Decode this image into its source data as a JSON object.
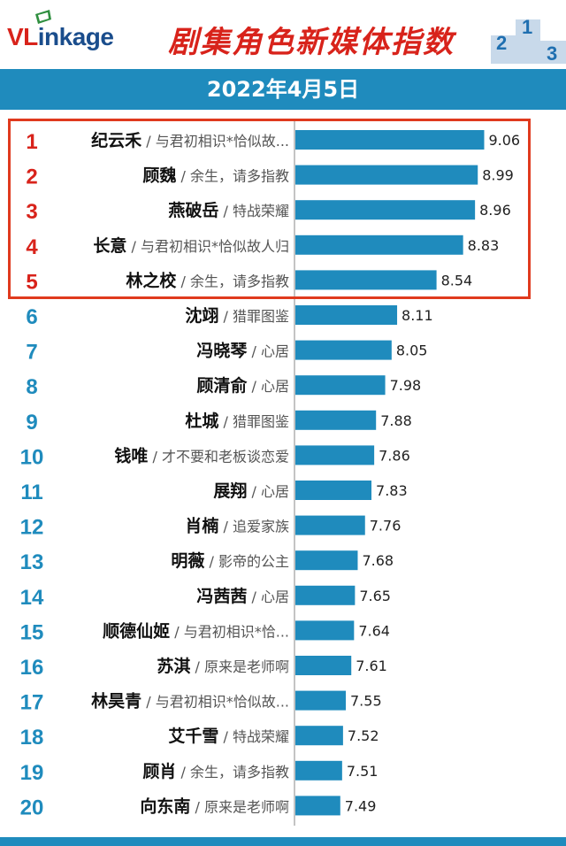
{
  "header": {
    "logo_vl": "VL",
    "logo_rest": "inkage",
    "title": "剧集角色新媒体指数",
    "podium_digits": [
      "2",
      "1",
      "3"
    ]
  },
  "date": "2022年4月5日",
  "colors": {
    "accent": "#1f8bbd",
    "rank_top": "#d8231b",
    "rank_other": "#1f8bbd",
    "highlight_box": "#e03a1e"
  },
  "chart_data": {
    "type": "bar",
    "orientation": "horizontal",
    "highlighted_ranks": [
      1,
      2,
      3,
      4,
      5
    ],
    "rows": [
      {
        "rank": "1",
        "name": "纪云禾",
        "drama": " / 与君初相识*恰似故...",
        "value": 9.06
      },
      {
        "rank": "2",
        "name": "顾魏",
        "drama": " / 余生，请多指教",
        "value": 8.99
      },
      {
        "rank": "3",
        "name": "燕破岳",
        "drama": " / 特战荣耀",
        "value": 8.96
      },
      {
        "rank": "4",
        "name": "长意",
        "drama": " / 与君初相识*恰似故人归",
        "value": 8.83
      },
      {
        "rank": "5",
        "name": "林之校",
        "drama": " / 余生，请多指教",
        "value": 8.54
      },
      {
        "rank": "6",
        "name": "沈翊",
        "drama": " / 猎罪图鉴",
        "value": 8.11
      },
      {
        "rank": "7",
        "name": "冯晓琴",
        "drama": " / 心居",
        "value": 8.05
      },
      {
        "rank": "8",
        "name": "顾清俞",
        "drama": " / 心居",
        "value": 7.98
      },
      {
        "rank": "9",
        "name": "杜城",
        "drama": " / 猎罪图鉴",
        "value": 7.88
      },
      {
        "rank": "10",
        "name": "钱唯",
        "drama": " / 才不要和老板谈恋爱",
        "value": 7.86
      },
      {
        "rank": "11",
        "name": "展翔",
        "drama": " / 心居",
        "value": 7.83
      },
      {
        "rank": "12",
        "name": "肖楠",
        "drama": " / 追爱家族",
        "value": 7.76
      },
      {
        "rank": "13",
        "name": "明薇",
        "drama": " / 影帝的公主",
        "value": 7.68
      },
      {
        "rank": "14",
        "name": "冯茜茜",
        "drama": " / 心居",
        "value": 7.65
      },
      {
        "rank": "15",
        "name": "顺德仙姬",
        "drama": " / 与君初相识*恰...",
        "value": 7.64
      },
      {
        "rank": "16",
        "name": "苏淇",
        "drama": " / 原来是老师啊",
        "value": 7.61
      },
      {
        "rank": "17",
        "name": "林昊青",
        "drama": " / 与君初相识*恰似故...",
        "value": 7.55
      },
      {
        "rank": "18",
        "name": "艾千雪",
        "drama": " / 特战荣耀",
        "value": 7.52
      },
      {
        "rank": "19",
        "name": "顾肖",
        "drama": " / 余生，请多指教",
        "value": 7.51
      },
      {
        "rank": "20",
        "name": "向东南",
        "drama": " / 原来是老师啊",
        "value": 7.49
      }
    ],
    "xlim": [
      7.0,
      9.2
    ],
    "grid": false,
    "title": "剧集角色新媒体指数",
    "subtitle": "2022年4月5日"
  }
}
